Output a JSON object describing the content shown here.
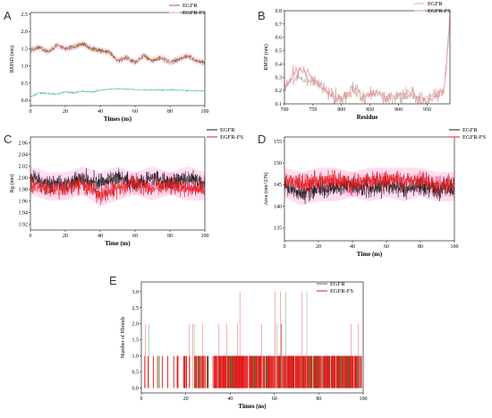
{
  "figure": {
    "panels": [
      "A",
      "B",
      "C",
      "D",
      "E"
    ]
  },
  "colors": {
    "EGFR": "#1a1a1a",
    "EGFR-FS": "#e31a1c",
    "A_EGFR": "#3cb6a8",
    "A_EGFR_FS": "#8a6a2a",
    "B_EGFR": "#c8b8b8",
    "B_EGFR_FS": "#e39a9a",
    "E_EGFR": "#2e8b2e",
    "E_EGFR_FS": "#e31a1c",
    "pink_band": "#ff9ed6"
  },
  "chart_data": [
    {
      "panel": "A",
      "type": "line",
      "xlabel": "Times (ns)",
      "ylabel": "RMSD (nm)",
      "xlim": [
        0,
        100
      ],
      "ylim": [
        -0.15,
        2.55
      ],
      "xticks": [
        0,
        20,
        40,
        60,
        80,
        100
      ],
      "yticks": [
        0.0,
        0.5,
        1.0,
        1.5,
        2.0,
        2.5
      ],
      "legend": [
        "EGFR",
        "EGFR-FS"
      ],
      "legend_position": "top-right",
      "series": [
        {
          "name": "EGFR",
          "x": [
            0,
            5,
            10,
            15,
            20,
            25,
            30,
            35,
            40,
            45,
            50,
            55,
            60,
            65,
            70,
            75,
            80,
            85,
            90,
            95,
            100
          ],
          "values": [
            0.1,
            0.22,
            0.2,
            0.18,
            0.25,
            0.22,
            0.27,
            0.24,
            0.3,
            0.32,
            0.34,
            0.33,
            0.32,
            0.3,
            0.31,
            0.3,
            0.31,
            0.3,
            0.29,
            0.28,
            0.28
          ]
        },
        {
          "name": "EGFR-FS",
          "x": [
            0,
            5,
            10,
            15,
            20,
            25,
            30,
            35,
            40,
            45,
            50,
            55,
            60,
            65,
            70,
            75,
            80,
            85,
            90,
            95,
            100
          ],
          "values": [
            1.45,
            1.55,
            1.4,
            1.6,
            1.5,
            1.55,
            1.65,
            1.5,
            1.45,
            1.4,
            1.15,
            1.25,
            1.1,
            1.3,
            1.15,
            1.25,
            1.1,
            1.2,
            1.3,
            1.15,
            1.1
          ]
        }
      ]
    },
    {
      "panel": "B",
      "type": "line",
      "xlabel": "Residue",
      "ylabel": "RMSF (nm)",
      "xlim": [
        700,
        990
      ],
      "ylim": [
        0.1,
        0.8
      ],
      "xticks": [
        700,
        750,
        800,
        850,
        900,
        950
      ],
      "yticks": [
        0.1,
        0.2,
        0.3,
        0.4,
        0.5,
        0.6,
        0.7,
        0.8
      ],
      "legend": [
        "EGFR",
        "EGFR-FS"
      ],
      "legend_position": "top-right",
      "series": [
        {
          "name": "EGFR",
          "x": [
            700,
            720,
            740,
            760,
            780,
            800,
            820,
            840,
            860,
            880,
            900,
            920,
            940,
            960,
            980,
            990
          ],
          "values": [
            0.22,
            0.3,
            0.28,
            0.24,
            0.16,
            0.14,
            0.22,
            0.15,
            0.2,
            0.14,
            0.15,
            0.18,
            0.13,
            0.15,
            0.22,
            0.68
          ]
        },
        {
          "name": "EGFR-FS",
          "x": [
            700,
            720,
            740,
            760,
            780,
            800,
            820,
            840,
            860,
            880,
            900,
            920,
            940,
            960,
            980,
            990
          ],
          "values": [
            0.2,
            0.36,
            0.33,
            0.25,
            0.17,
            0.13,
            0.21,
            0.14,
            0.19,
            0.13,
            0.17,
            0.17,
            0.12,
            0.14,
            0.2,
            0.78
          ]
        }
      ]
    },
    {
      "panel": "C",
      "type": "line",
      "xlabel": "Time (ns)",
      "ylabel": "Rg (nm)",
      "xlim": [
        0,
        100
      ],
      "ylim": [
        1.91,
        2.07
      ],
      "xticks": [
        0,
        20,
        40,
        60,
        80,
        100
      ],
      "yticks": [
        1.92,
        1.94,
        1.96,
        1.98,
        2.0,
        2.02,
        2.04,
        2.06
      ],
      "legend": [
        "EGFR",
        "EGFR-FS"
      ],
      "legend_position": "top-right",
      "series": [
        {
          "name": "EGFR",
          "x": [
            0,
            10,
            20,
            30,
            40,
            50,
            60,
            70,
            80,
            90,
            100
          ],
          "values": [
            2.0,
            1.99,
            1.99,
            2.0,
            1.99,
            2.0,
            1.99,
            2.0,
            1.99,
            2.0,
            1.99
          ]
        },
        {
          "name": "EGFR-FS",
          "x": [
            0,
            10,
            20,
            30,
            40,
            50,
            60,
            70,
            80,
            90,
            100
          ],
          "values": [
            1.99,
            1.98,
            1.98,
            1.99,
            1.97,
            1.98,
            1.99,
            1.98,
            1.99,
            1.98,
            1.98
          ]
        }
      ]
    },
    {
      "panel": "D",
      "type": "line",
      "xlabel": "Time (ns)",
      "ylabel": "Area (nm^2/N)",
      "xlim": [
        0,
        100
      ],
      "ylim": [
        132,
        156
      ],
      "xticks": [
        0,
        20,
        40,
        60,
        80,
        100
      ],
      "yticks": [
        135,
        140,
        145,
        150,
        155
      ],
      "legend": [
        "EGFR",
        "EGFR-FS"
      ],
      "legend_position": "top-right",
      "series": [
        {
          "name": "EGFR",
          "x": [
            0,
            10,
            20,
            30,
            40,
            50,
            60,
            70,
            80,
            90,
            100
          ],
          "values": [
            145,
            143,
            144,
            144,
            145,
            144,
            145,
            144,
            145,
            144,
            144
          ]
        },
        {
          "name": "EGFR-FS",
          "x": [
            0,
            10,
            20,
            30,
            40,
            50,
            60,
            70,
            80,
            90,
            100
          ],
          "values": [
            146,
            145,
            146,
            146,
            145,
            146,
            146,
            146,
            146,
            145,
            145
          ]
        }
      ]
    },
    {
      "panel": "E",
      "type": "bar",
      "xlabel": "Times (ns)",
      "ylabel": "Number of Hbonds",
      "xlim": [
        0,
        100
      ],
      "ylim": [
        -0.15,
        3.3
      ],
      "xticks": [
        0,
        20,
        40,
        60,
        80,
        100
      ],
      "yticks": [
        0.0,
        0.5,
        1.0,
        1.5,
        2.0,
        2.5,
        3.0
      ],
      "legend": [
        "EGFR",
        "EGFR-FS"
      ],
      "legend_position": "top-right",
      "series": [
        {
          "name": "EGFR",
          "values": [
            0,
            1
          ]
        },
        {
          "name": "EGFR-FS",
          "values": [
            0,
            1,
            2,
            3
          ]
        }
      ]
    }
  ]
}
